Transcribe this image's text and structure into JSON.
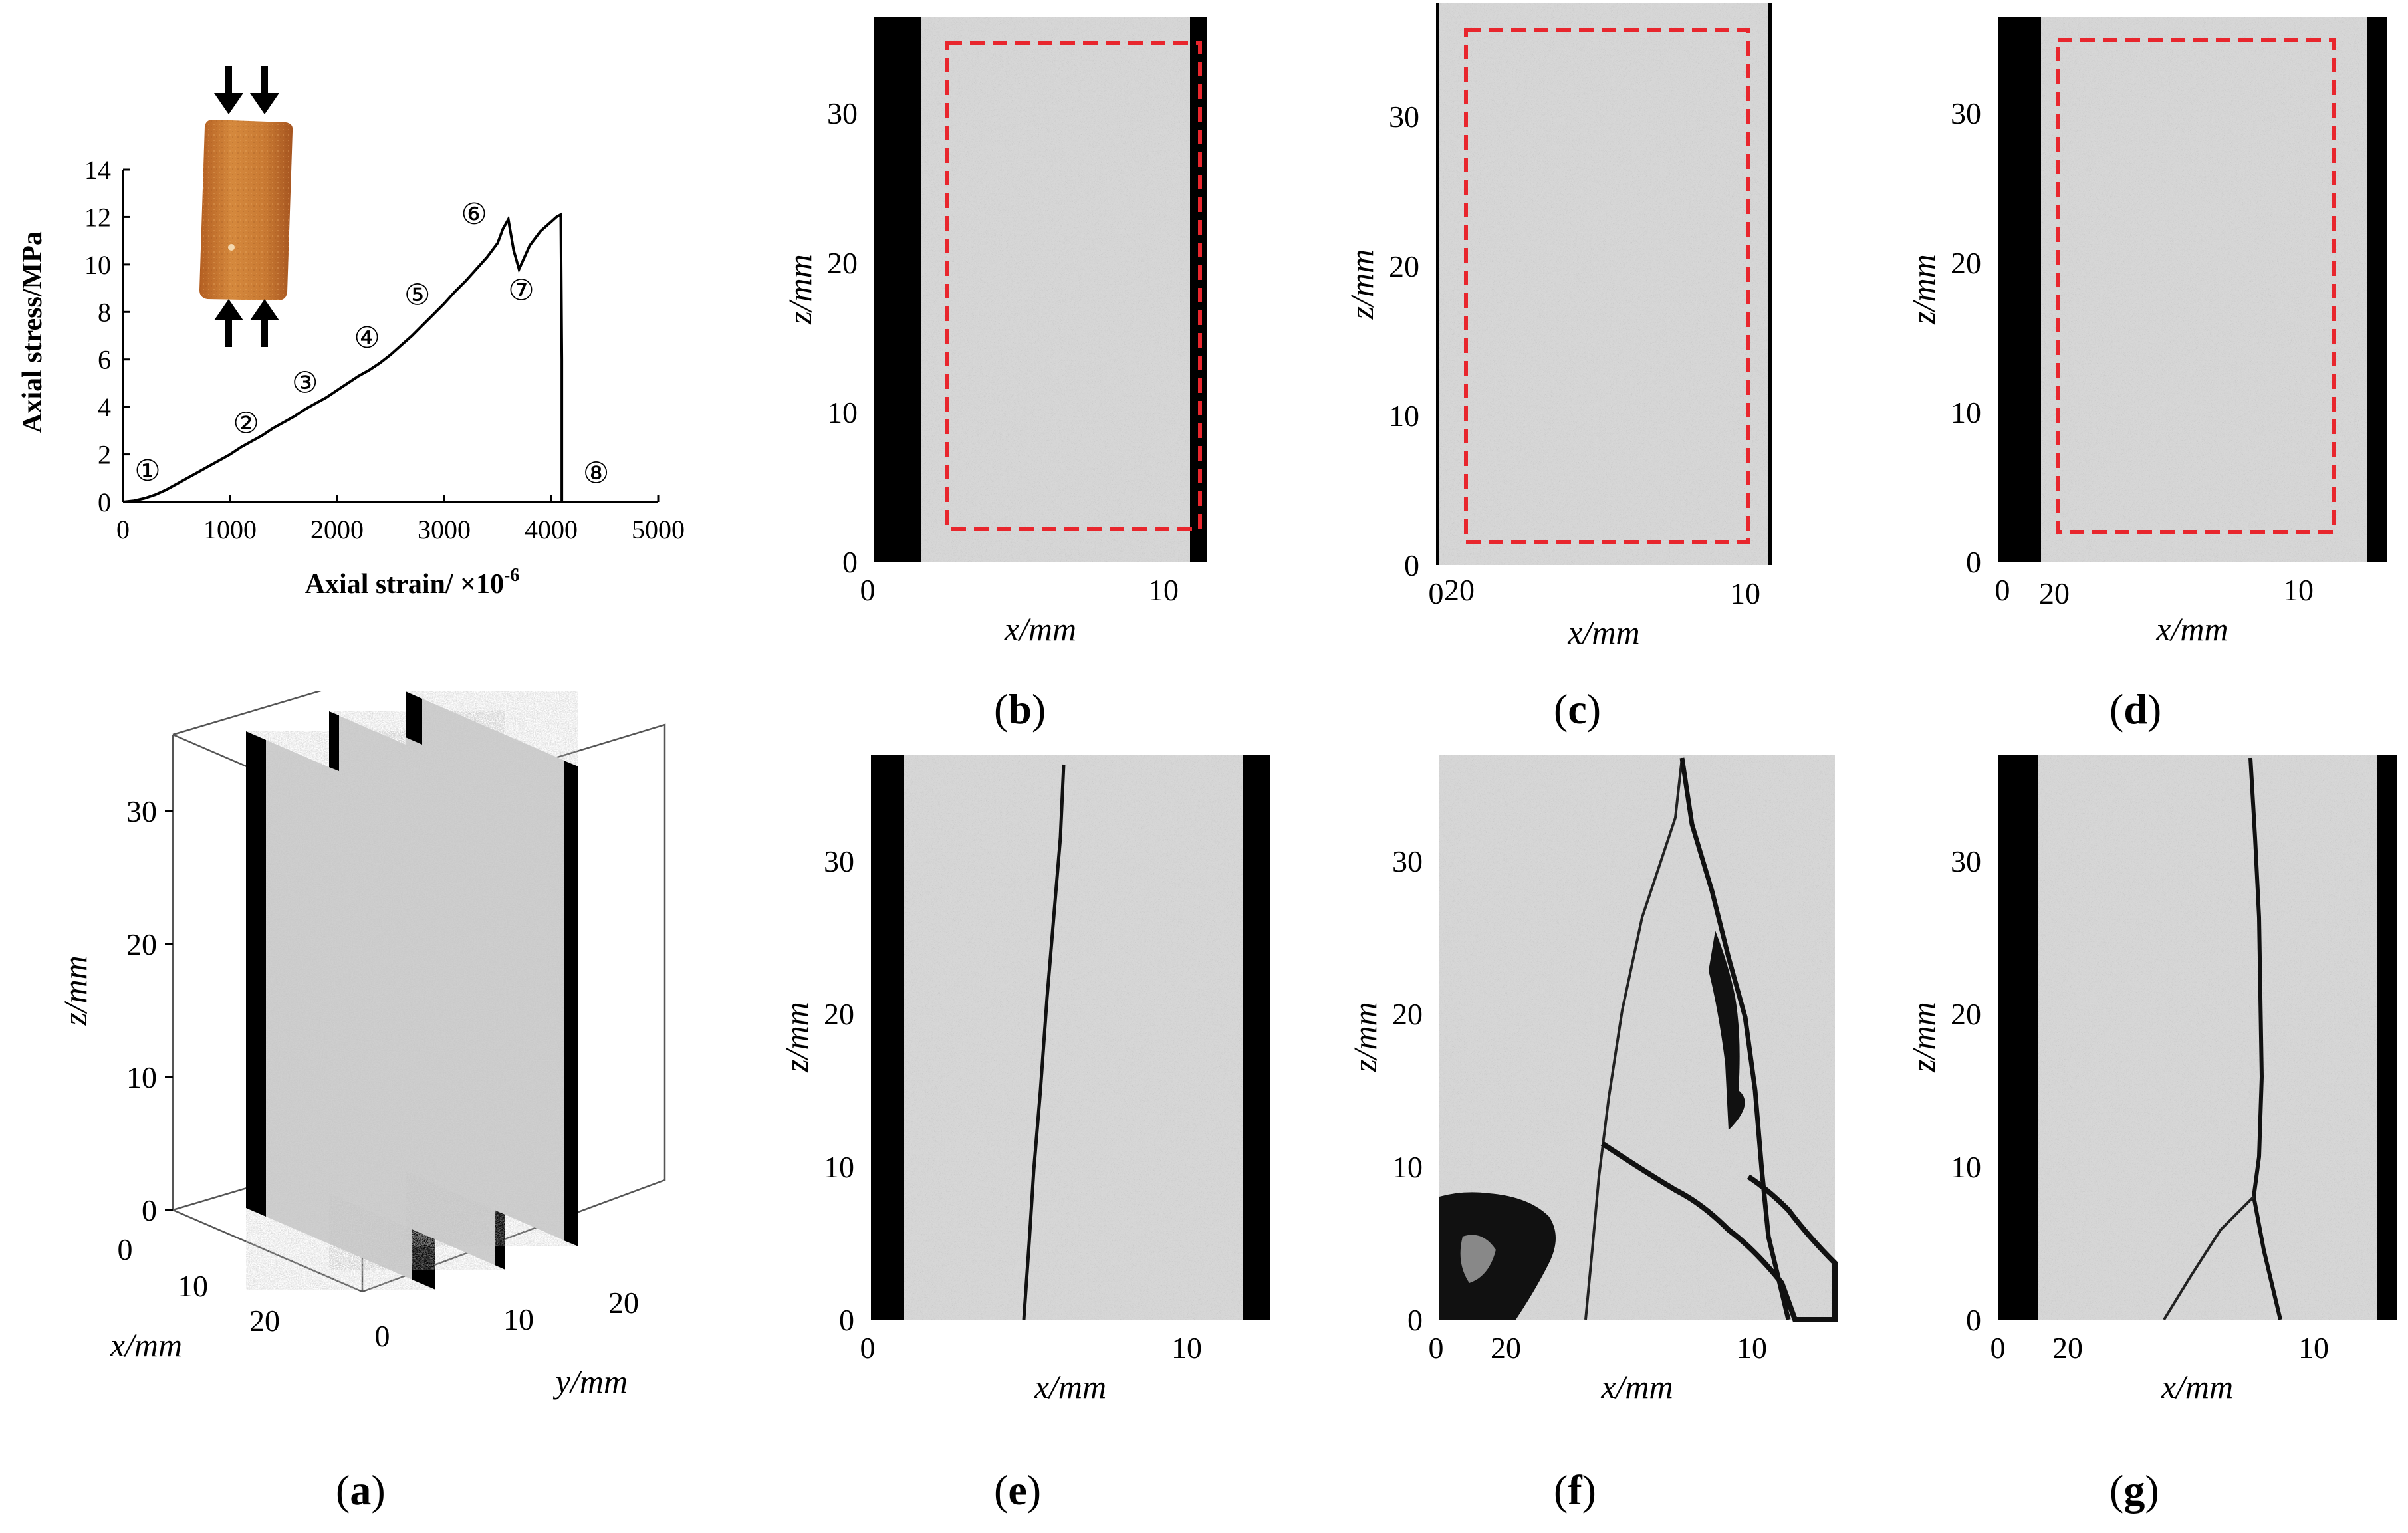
{
  "chart_data": {
    "type": "line",
    "xlabel": "Axial strain/ ×10",
    "xlabel_exp": "-6",
    "ylabel": "Axial stress/MPa",
    "xlim": [
      0,
      5000
    ],
    "ylim": [
      0,
      14
    ],
    "x_ticks": [
      "0",
      "1000",
      "2000",
      "3000",
      "4000",
      "5000"
    ],
    "y_ticks": [
      "0",
      "2",
      "4",
      "6",
      "8",
      "10",
      "12",
      "14"
    ],
    "series": [
      {
        "x": [
          0,
          100,
          200,
          300,
          400,
          500,
          600,
          700,
          800,
          900,
          1000,
          1100,
          1200,
          1300,
          1400,
          1500,
          1600,
          1700,
          1800,
          1900,
          2000,
          2100,
          2200,
          2300,
          2400,
          2500,
          2600,
          2700,
          2800,
          2900,
          3000,
          3100,
          3200,
          3300,
          3400,
          3500,
          3550,
          3600,
          3650,
          3700,
          3750,
          3800,
          3900,
          4000,
          4050,
          4090,
          4100,
          4100
        ],
        "y": [
          0,
          0.05,
          0.15,
          0.3,
          0.5,
          0.75,
          1.0,
          1.25,
          1.5,
          1.75,
          2.0,
          2.3,
          2.55,
          2.8,
          3.1,
          3.35,
          3.6,
          3.9,
          4.15,
          4.4,
          4.7,
          5.0,
          5.3,
          5.55,
          5.85,
          6.2,
          6.6,
          7.0,
          7.45,
          7.9,
          8.35,
          8.85,
          9.3,
          9.8,
          10.3,
          10.9,
          11.5,
          11.9,
          10.6,
          9.8,
          10.3,
          10.8,
          11.4,
          11.8,
          12.0,
          12.1,
          6.0,
          0
        ]
      }
    ],
    "stage_markers": [
      {
        "label": "①",
        "x": 230,
        "y": 0.9
      },
      {
        "label": "②",
        "x": 1150,
        "y": 2.9
      },
      {
        "label": "③",
        "x": 1700,
        "y": 4.6
      },
      {
        "label": "④",
        "x": 2280,
        "y": 6.5
      },
      {
        "label": "⑤",
        "x": 2750,
        "y": 8.3
      },
      {
        "label": "⑥",
        "x": 3280,
        "y": 11.7
      },
      {
        "label": "⑦",
        "x": 3720,
        "y": 8.5
      },
      {
        "label": "⑧",
        "x": 4420,
        "y": 0.8
      }
    ]
  },
  "ct_panels": {
    "x_label": "x/mm",
    "z_label": "z/mm",
    "x_ticks": [
      "0",
      "10",
      "20"
    ],
    "z_ticks": [
      "0",
      "10",
      "20",
      "30"
    ]
  },
  "panel_3d": {
    "z_label": "z/mm",
    "x_label": "x/mm",
    "y_label": "y/mm",
    "z_ticks": [
      "0",
      "10",
      "20",
      "30"
    ],
    "x_ticks": [
      "0",
      "10",
      "20"
    ],
    "y_ticks": [
      "0",
      "10",
      "20"
    ]
  },
  "captions": {
    "a": "a",
    "b": "b",
    "c": "c",
    "d": "d",
    "e": "e",
    "f": "f",
    "g": "g"
  },
  "colors": {
    "roi_box": "#e8262d",
    "specimen_gray": "#c4c4c4",
    "background_black": "#000000",
    "rock_sample": "#c8732e"
  }
}
